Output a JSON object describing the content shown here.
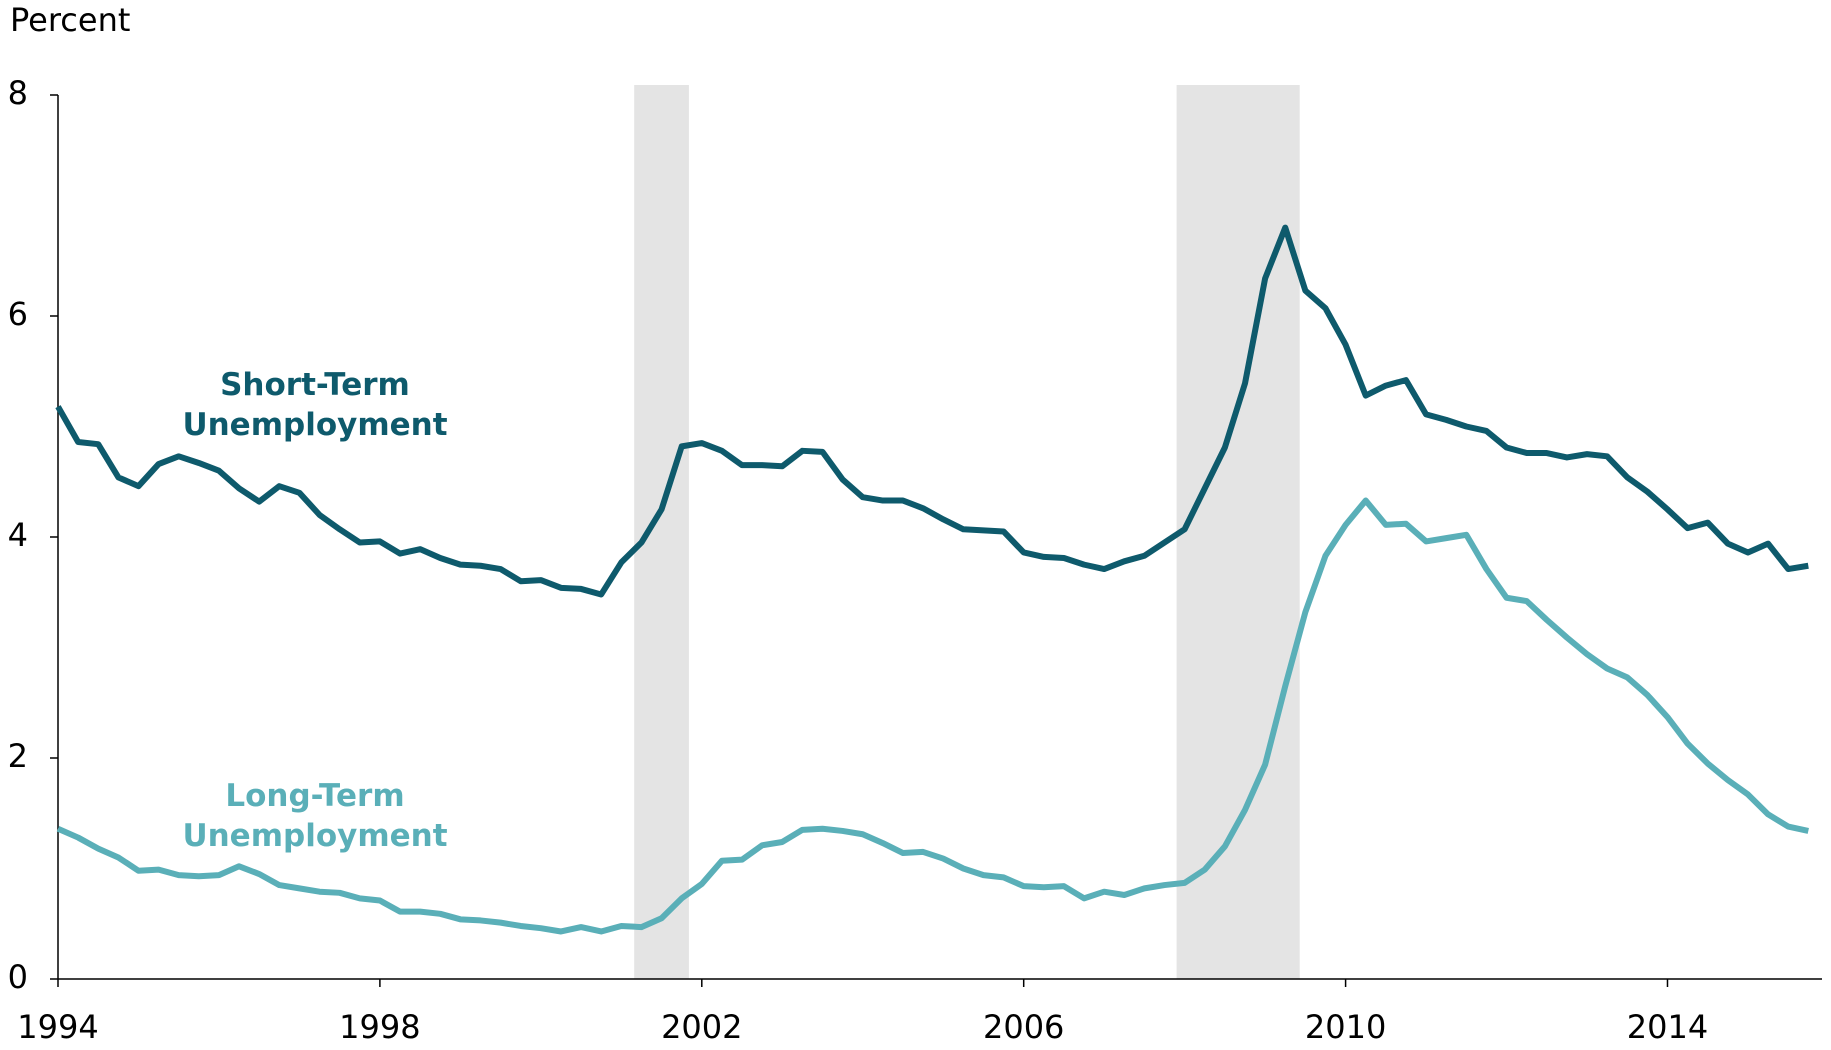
{
  "chart_data": {
    "type": "line",
    "y_label": "Percent",
    "x": [
      1994,
      1994.25,
      1994.5,
      1994.75,
      1995,
      1995.25,
      1995.5,
      1995.75,
      1996,
      1996.25,
      1996.5,
      1996.75,
      1997,
      1997.25,
      1997.5,
      1997.75,
      1998,
      1998.25,
      1998.5,
      1998.75,
      1999,
      1999.25,
      1999.5,
      1999.75,
      2000,
      2000.25,
      2000.5,
      2000.75,
      2001,
      2001.25,
      2001.5,
      2001.75,
      2002,
      2002.25,
      2002.5,
      2002.75,
      2003,
      2003.25,
      2003.5,
      2003.75,
      2004,
      2004.25,
      2004.5,
      2004.75,
      2005,
      2005.25,
      2005.5,
      2005.75,
      2006,
      2006.25,
      2006.5,
      2006.75,
      2007,
      2007.25,
      2007.5,
      2007.75,
      2008,
      2008.25,
      2008.5,
      2008.75,
      2009,
      2009.25,
      2009.5,
      2009.75,
      2010,
      2010.25,
      2010.5,
      2010.75,
      2011,
      2011.25,
      2011.5,
      2011.75,
      2012,
      2012.25,
      2012.5,
      2012.75,
      2013,
      2013.25,
      2013.5,
      2013.75,
      2014,
      2014.25,
      2014.5,
      2014.75,
      2015,
      2015.25,
      2015.5,
      2015.75
    ],
    "series": [
      {
        "name": "Short-Term Unemployment",
        "color": "#0e5a6c",
        "values": [
          5.18,
          4.86,
          4.84,
          4.54,
          4.46,
          4.66,
          4.73,
          4.67,
          4.6,
          4.44,
          4.32,
          4.46,
          4.4,
          4.2,
          4.07,
          3.95,
          3.96,
          3.85,
          3.89,
          3.81,
          3.75,
          3.74,
          3.71,
          3.6,
          3.61,
          3.54,
          3.53,
          3.48,
          3.77,
          3.95,
          4.25,
          4.82,
          4.85,
          4.78,
          4.65,
          4.65,
          4.64,
          4.78,
          4.77,
          4.52,
          4.36,
          4.33,
          4.33,
          4.26,
          4.16,
          4.07,
          4.06,
          4.05,
          3.86,
          3.82,
          3.81,
          3.75,
          3.71,
          3.78,
          3.83,
          3.95,
          4.07,
          4.44,
          4.81,
          5.39,
          6.34,
          6.8,
          6.23,
          6.07,
          5.74,
          5.28,
          5.37,
          5.42,
          5.11,
          5.06,
          5.0,
          4.96,
          4.81,
          4.76,
          4.76,
          4.72,
          4.75,
          4.73,
          4.54,
          4.41,
          4.25,
          4.08,
          4.13,
          3.94,
          3.86,
          3.94,
          3.71,
          3.74
        ]
      },
      {
        "name": "Long-Term Unemployment",
        "color": "#5aafb8",
        "values": [
          1.36,
          1.28,
          1.18,
          1.1,
          0.98,
          0.99,
          0.94,
          0.93,
          0.94,
          1.02,
          0.95,
          0.85,
          0.82,
          0.79,
          0.78,
          0.73,
          0.71,
          0.61,
          0.61,
          0.59,
          0.54,
          0.53,
          0.51,
          0.48,
          0.46,
          0.43,
          0.47,
          0.43,
          0.48,
          0.47,
          0.55,
          0.73,
          0.86,
          1.07,
          1.08,
          1.21,
          1.24,
          1.35,
          1.36,
          1.34,
          1.31,
          1.23,
          1.14,
          1.15,
          1.09,
          1.0,
          0.94,
          0.92,
          0.84,
          0.83,
          0.84,
          0.73,
          0.79,
          0.76,
          0.82,
          0.85,
          0.87,
          0.99,
          1.2,
          1.53,
          1.94,
          2.65,
          3.32,
          3.83,
          4.11,
          4.33,
          4.11,
          4.12,
          3.96,
          3.99,
          4.02,
          3.71,
          3.45,
          3.42,
          3.25,
          3.09,
          2.94,
          2.81,
          2.73,
          2.57,
          2.37,
          2.13,
          1.95,
          1.8,
          1.67,
          1.49,
          1.38,
          1.34
        ]
      }
    ],
    "recessions": [
      [
        2001.16,
        2001.84
      ],
      [
        2007.9,
        2009.43
      ]
    ],
    "recession_color": "#e4e4e4",
    "xlim": [
      1994,
      2015.92
    ],
    "xticks": [
      1994,
      1998,
      2002,
      2006,
      2010,
      2014
    ],
    "ylim": [
      0,
      8
    ],
    "yticks": [
      0,
      2,
      4,
      6,
      8
    ],
    "grid": false
  }
}
